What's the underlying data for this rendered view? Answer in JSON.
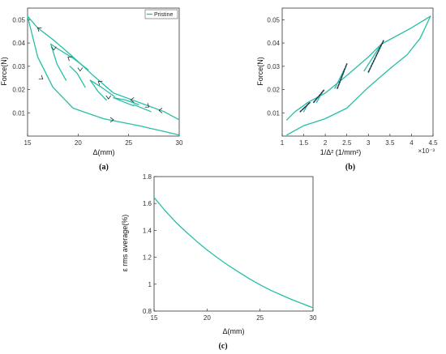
{
  "chart_data": [
    {
      "type": "line",
      "panel_label": "(a)",
      "xlabel": "Δ(mm)",
      "ylabel": "Force(N)",
      "xlim": [
        15,
        30
      ],
      "ylim": [
        0,
        0.055
      ],
      "xticks": [
        "15",
        "20",
        "25",
        "30"
      ],
      "yticks": [
        "0.01",
        "0.02",
        "0.03",
        "0.04",
        "0.05"
      ],
      "legend": {
        "position": "top-right",
        "entries": [
          "Pristine"
        ]
      },
      "series": [
        {
          "name": "Pristine",
          "color": "#26bfa6",
          "segments": [
            {
              "x": [
                15.0,
                16.0,
                17.5,
                19.5,
                22.5,
                26.0,
                30.0
              ],
              "y": [
                0.0515,
                0.034,
                0.021,
                0.012,
                0.0075,
                0.0045,
                0.0005
              ]
            },
            {
              "x": [
                15.0,
                16.0,
                17.5,
                19.5,
                21.5,
                23.5,
                26.0,
                28.5,
                30.0
              ],
              "y": [
                0.0515,
                0.0465,
                0.0415,
                0.034,
                0.026,
                0.0185,
                0.0145,
                0.0105,
                0.007
              ]
            },
            {
              "x": [
                17.3,
                18.0,
                19.5,
                21.0
              ],
              "y": [
                0.0395,
                0.0375,
                0.0335,
                0.0285
              ]
            },
            {
              "x": [
                17.3,
                17.9,
                18.8
              ],
              "y": [
                0.0395,
                0.031,
                0.024
              ]
            },
            {
              "x": [
                19.2,
                19.9,
                20.7
              ],
              "y": [
                0.03,
                0.027,
                0.021
              ]
            },
            {
              "x": [
                21.2,
                22.3,
                23.6
              ],
              "y": [
                0.024,
                0.021,
                0.017
              ]
            },
            {
              "x": [
                21.2,
                22.0,
                22.8
              ],
              "y": [
                0.024,
                0.019,
                0.0155
              ]
            },
            {
              "x": [
                23.5,
                24.7,
                26.0
              ],
              "y": [
                0.0165,
                0.0155,
                0.0135
              ]
            },
            {
              "x": [
                23.5,
                24.6,
                25.5
              ],
              "y": [
                0.0165,
                0.0145,
                0.013
              ]
            },
            {
              "x": [
                25.5,
                27.2
              ],
              "y": [
                0.0135,
                0.0105
              ]
            }
          ],
          "arrows": [
            {
              "x": 16.0,
              "y": 0.0465,
              "dir": "up-left"
            },
            {
              "x": 17.6,
              "y": 0.037,
              "dir": "down"
            },
            {
              "x": 19.0,
              "y": 0.034,
              "dir": "up-left"
            },
            {
              "x": 20.2,
              "y": 0.028,
              "dir": "down"
            },
            {
              "x": 22.0,
              "y": 0.0235,
              "dir": "up-left"
            },
            {
              "x": 23.0,
              "y": 0.016,
              "dir": "down"
            },
            {
              "x": 25.2,
              "y": 0.0155,
              "dir": "left"
            },
            {
              "x": 27.0,
              "y": 0.0125,
              "dir": "down-right"
            },
            {
              "x": 28.0,
              "y": 0.011,
              "dir": "left"
            },
            {
              "x": 16.5,
              "y": 0.0245,
              "dir": "down-right"
            },
            {
              "x": 23.5,
              "y": 0.007,
              "dir": "right"
            }
          ]
        }
      ]
    },
    {
      "type": "line",
      "panel_label": "(b)",
      "xlabel": "1/Δ² (1/mm²)",
      "ylabel": "Force(N)",
      "x_multiplier": "×10⁻³",
      "xlim": [
        1,
        4.5
      ],
      "ylim": [
        0,
        0.055
      ],
      "xticks": [
        "1",
        "1.5",
        "2",
        "2.5",
        "3",
        "3.5",
        "4",
        "4.5"
      ],
      "yticks": [
        "0.01",
        "0.02",
        "0.03",
        "0.04",
        "0.05"
      ],
      "series": [
        {
          "color": "#26bfa6",
          "segments": [
            {
              "x": [
                1.11,
                1.5,
                2.0,
                2.5,
                3.0,
                3.5,
                3.9,
                4.2,
                4.44
              ],
              "y": [
                0.0005,
                0.0045,
                0.0075,
                0.012,
                0.021,
                0.029,
                0.035,
                0.042,
                0.0515
              ]
            },
            {
              "x": [
                1.11,
                1.3,
                1.6,
                2.0,
                2.5,
                3.0,
                3.3,
                4.0,
                4.44
              ],
              "y": [
                0.007,
                0.0105,
                0.0145,
                0.0185,
                0.026,
                0.034,
                0.0395,
                0.0465,
                0.0515
              ]
            },
            {
              "x": [
                1.5,
                1.6
              ],
              "y": [
                0.0105,
                0.014
              ]
            },
            {
              "x": [
                1.8,
                1.95
              ],
              "y": [
                0.0145,
                0.0195
              ]
            },
            {
              "x": [
                2.22,
                2.45
              ],
              "y": [
                0.0205,
                0.029
              ]
            },
            {
              "x": [
                2.9,
                3.3
              ],
              "y": [
                0.028,
                0.0395
              ]
            }
          ]
        },
        {
          "color": "#1f3b4d",
          "style": "dashed",
          "segments": [
            {
              "x": [
                1.42,
                1.65
              ],
              "y": [
                0.0105,
                0.0145
              ]
            },
            {
              "x": [
                1.73,
                1.98
              ],
              "y": [
                0.0145,
                0.02
              ]
            },
            {
              "x": [
                2.28,
                2.5
              ],
              "y": [
                0.0205,
                0.031
              ]
            },
            {
              "x": [
                3.0,
                3.35
              ],
              "y": [
                0.0275,
                0.041
              ]
            }
          ]
        }
      ]
    },
    {
      "type": "line",
      "panel_label": "(c)",
      "xlabel": "Δ(mm)",
      "ylabel": "ε rms average(%)",
      "xlim": [
        15,
        30
      ],
      "ylim": [
        0.8,
        1.8
      ],
      "xticks": [
        "15",
        "20",
        "25",
        "30"
      ],
      "yticks": [
        "0.8",
        "1",
        "1.2",
        "1.4",
        "1.6",
        "1.8"
      ],
      "series": [
        {
          "color": "#26bfa6",
          "x": [
            15,
            16,
            17,
            18,
            19,
            20,
            21,
            22,
            23,
            24,
            25,
            26,
            27,
            28,
            29,
            30
          ],
          "y": [
            1.645,
            1.55,
            1.465,
            1.39,
            1.32,
            1.255,
            1.195,
            1.14,
            1.09,
            1.04,
            0.995,
            0.955,
            0.92,
            0.885,
            0.855,
            0.825
          ]
        }
      ]
    }
  ]
}
